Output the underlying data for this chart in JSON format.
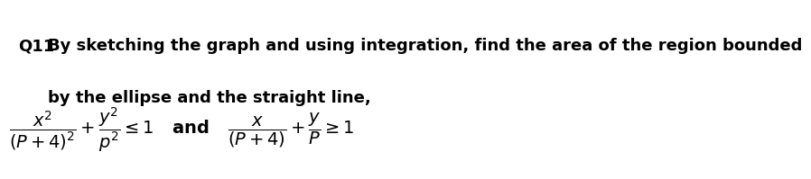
{
  "background_color": "#ffffff",
  "q_label": "Q11",
  "line1": "By sketching the graph and using integration, find the area of the region bounded",
  "line2": "by the ellipse and the straight line,",
  "math_line": "$\\dfrac{x^2}{(P+4)^2} + \\dfrac{y^2}{p^2} \\leq 1$   and   $\\dfrac{x}{(P+4)} + \\dfrac{y}{P} \\geq 1$",
  "q_fontsize": 13,
  "text_fontsize": 13,
  "math_fontsize": 14
}
